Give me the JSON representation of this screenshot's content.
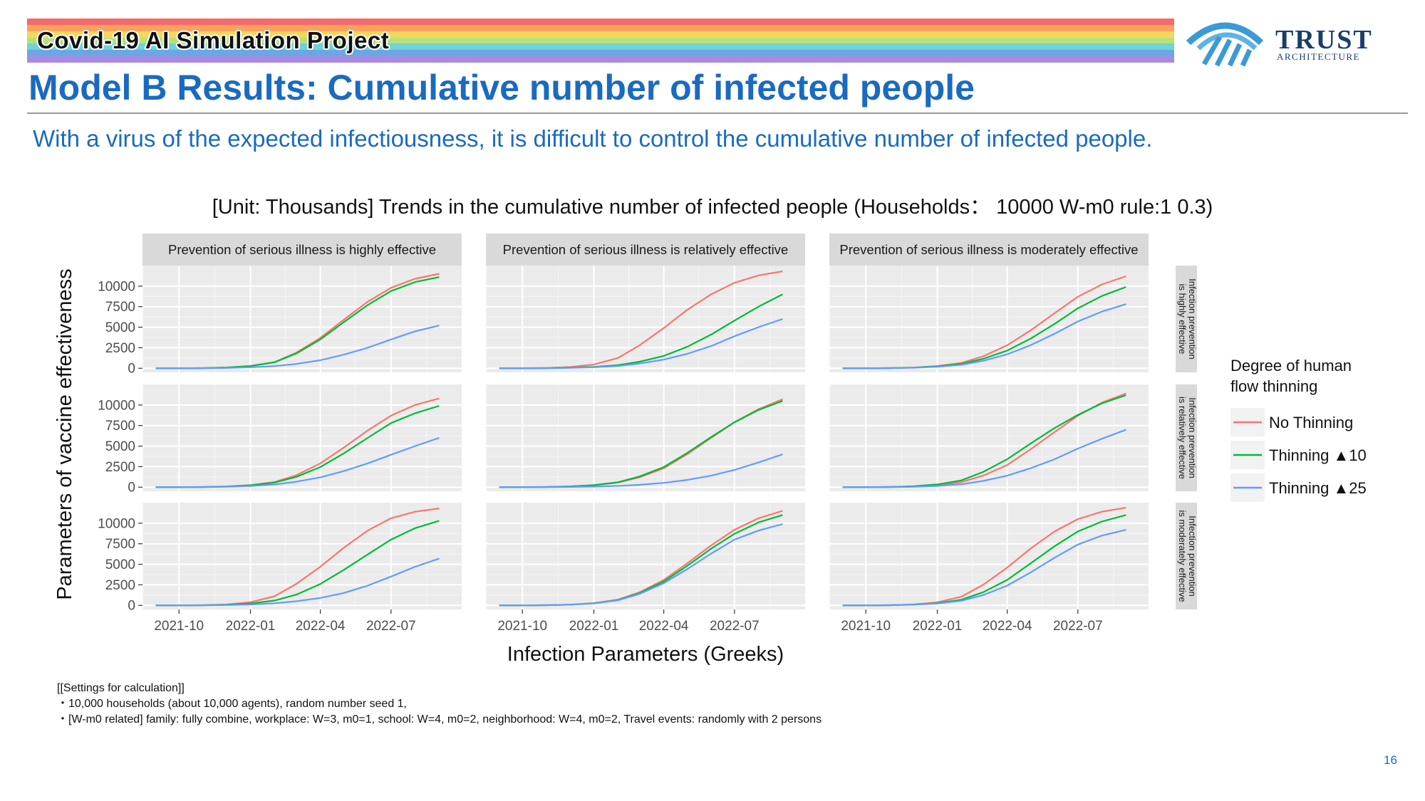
{
  "header": {
    "project_title": "Covid-19 AI Simulation Project",
    "logo_text": "TRUST",
    "logo_subtext": "ARCHITECTURE",
    "logo_icon": "arch-logo-icon",
    "rainbow_colors": [
      "#f46b6b",
      "#f7a35c",
      "#f6d55c",
      "#b8e07a",
      "#6fd3d7",
      "#6aa7e6",
      "#a98ae0"
    ]
  },
  "main_title": "Model B Results: Cumulative number of infected people",
  "subtitle": "With a virus of the expected infectiousness, it is difficult to control the cumulative number of infected people.",
  "settings": {
    "heading": "[[Settings for calculation]]",
    "lines": [
      "・10,000 households (about 10,000 agents), random number seed 1,",
      "・[W-m0 related] family: fully combine, workplace: W=3, m0=1, school: W=4, m0=2, neighborhood: W=4, m0=2, Travel events: randomly with 2 persons"
    ]
  },
  "page_number": "16",
  "chart_data": {
    "type": "line",
    "title": "[Unit: Thousands] Trends in the cumulative number of infected people (Households： 10000 W-m0 rule:1 0.3)",
    "xlabel": "Infection Parameters (Greeks)",
    "ylabel": "Parameters of vaccine effectiveness",
    "x": [
      "2021-09-01",
      "2021-10-01",
      "2021-11-01",
      "2021-12-01",
      "2022-01-01",
      "2022-02-01",
      "2022-03-01",
      "2022-04-01",
      "2022-05-01",
      "2022-06-01",
      "2022-07-01",
      "2022-08-01",
      "2022-09-01"
    ],
    "xlim": [
      "2021-08-15",
      "2022-09-30"
    ],
    "x_ticks": [
      "2021-10",
      "2022-01",
      "2022-04",
      "2022-07"
    ],
    "ylim": [
      -500,
      12500
    ],
    "y_ticks": [
      0,
      2500,
      5000,
      7500,
      10000
    ],
    "grid": true,
    "legend": {
      "title": "Degree of human flow thinning",
      "placement": "right",
      "entries": [
        {
          "name": "No Thinning",
          "color": "#f8766d"
        },
        {
          "name": "Thinning ▲10",
          "color": "#00ba38"
        },
        {
          "name": "Thinning ▲25",
          "color": "#619cff"
        }
      ]
    },
    "column_facets": [
      "Prevention of serious illness is highly effective",
      "Prevention of serious illness is relatively effective",
      "Prevention of serious illness is moderately effective"
    ],
    "row_facets": [
      [
        "Infection prevention",
        "is highly effective"
      ],
      [
        "Infection prevention",
        "is relatively effective"
      ],
      [
        "Infection prevention",
        "is moderately effective"
      ]
    ],
    "panels": [
      [
        {
          "series": [
            {
              "name": "No Thinning",
              "values": [
                0,
                0,
                20,
                90,
                280,
                750,
                1900,
                3700,
                5900,
                8100,
                9800,
                10900,
                11500
              ]
            },
            {
              "name": "Thinning ▲10",
              "values": [
                0,
                0,
                20,
                90,
                270,
                720,
                1800,
                3500,
                5600,
                7700,
                9400,
                10500,
                11100
              ]
            },
            {
              "name": "Thinning ▲25",
              "values": [
                0,
                0,
                10,
                40,
                120,
                260,
                520,
                980,
                1650,
                2500,
                3500,
                4500,
                5200
              ]
            }
          ]
        },
        {
          "series": [
            {
              "name": "No Thinning",
              "values": [
                0,
                10,
                40,
                150,
                450,
                1250,
                2800,
                4900,
                7100,
                9000,
                10400,
                11300,
                11800
              ]
            },
            {
              "name": "Thinning ▲10",
              "values": [
                0,
                0,
                20,
                70,
                170,
                380,
                800,
                1500,
                2600,
                4100,
                5800,
                7500,
                9000
              ]
            },
            {
              "name": "Thinning ▲25",
              "values": [
                0,
                0,
                10,
                50,
                120,
                280,
                580,
                1050,
                1750,
                2700,
                3900,
                5000,
                6000
              ]
            }
          ]
        },
        {
          "series": [
            {
              "name": "No Thinning",
              "values": [
                0,
                0,
                20,
                90,
                270,
                650,
                1450,
                2800,
                4600,
                6700,
                8700,
                10200,
                11200
              ]
            },
            {
              "name": "Thinning ▲10",
              "values": [
                0,
                0,
                20,
                80,
                230,
                540,
                1150,
                2150,
                3600,
                5400,
                7300,
                8800,
                9900
              ]
            },
            {
              "name": "Thinning ▲25",
              "values": [
                0,
                0,
                20,
                60,
                180,
                430,
                900,
                1700,
                2800,
                4200,
                5700,
                6900,
                7800
              ]
            }
          ]
        }
      ],
      [
        {
          "series": [
            {
              "name": "No Thinning",
              "values": [
                0,
                0,
                20,
                90,
                250,
                630,
                1450,
                2900,
                4800,
                6900,
                8700,
                10000,
                10800
              ]
            },
            {
              "name": "Thinning ▲10",
              "values": [
                0,
                0,
                20,
                80,
                230,
                560,
                1250,
                2450,
                4100,
                6000,
                7800,
                9000,
                9900
              ]
            },
            {
              "name": "Thinning ▲25",
              "values": [
                0,
                0,
                10,
                50,
                140,
                320,
                660,
                1200,
                1950,
                2900,
                3950,
                5000,
                6000
              ]
            }
          ]
        },
        {
          "series": [
            {
              "name": "No Thinning",
              "values": [
                0,
                0,
                20,
                90,
                240,
                560,
                1200,
                2300,
                4000,
                6000,
                7900,
                9500,
                10700
              ]
            },
            {
              "name": "Thinning ▲10",
              "values": [
                0,
                0,
                20,
                90,
                250,
                600,
                1300,
                2450,
                4150,
                6100,
                7900,
                9400,
                10500
              ]
            },
            {
              "name": "Thinning ▲25",
              "values": [
                0,
                0,
                10,
                30,
                70,
                150,
                290,
                520,
                880,
                1400,
                2100,
                3000,
                4000
              ]
            }
          ]
        },
        {
          "series": [
            {
              "name": "No Thinning",
              "values": [
                0,
                0,
                20,
                90,
                250,
                620,
                1400,
                2700,
                4600,
                6700,
                8700,
                10300,
                11400
              ]
            },
            {
              "name": "Thinning ▲10",
              "values": [
                0,
                0,
                30,
                110,
                330,
                830,
                1850,
                3400,
                5300,
                7200,
                8800,
                10200,
                11200
              ]
            },
            {
              "name": "Thinning ▲25",
              "values": [
                0,
                0,
                10,
                50,
                150,
                360,
                760,
                1400,
                2300,
                3400,
                4700,
                5900,
                7000
              ]
            }
          ]
        }
      ],
      [
        {
          "series": [
            {
              "name": "No Thinning",
              "values": [
                0,
                0,
                20,
                110,
                380,
                1100,
                2600,
                4700,
                7000,
                9100,
                10600,
                11400,
                11800
              ]
            },
            {
              "name": "Thinning ▲10",
              "values": [
                0,
                0,
                20,
                80,
                230,
                580,
                1300,
                2600,
                4300,
                6200,
                8000,
                9400,
                10300
              ]
            },
            {
              "name": "Thinning ▲25",
              "values": [
                0,
                0,
                10,
                40,
                110,
                250,
                500,
                900,
                1500,
                2400,
                3500,
                4700,
                5700
              ]
            }
          ]
        },
        {
          "series": [
            {
              "name": "No Thinning",
              "values": [
                0,
                0,
                20,
                90,
                270,
                700,
                1600,
                3100,
                5100,
                7300,
                9200,
                10600,
                11500
              ]
            },
            {
              "name": "Thinning ▲10",
              "values": [
                0,
                0,
                20,
                80,
                250,
                650,
                1500,
                2900,
                4800,
                6900,
                8700,
                10100,
                11000
              ]
            },
            {
              "name": "Thinning ▲25",
              "values": [
                0,
                0,
                20,
                80,
                240,
                610,
                1400,
                2700,
                4400,
                6300,
                8000,
                9100,
                9900
              ]
            }
          ]
        },
        {
          "series": [
            {
              "name": "No Thinning",
              "values": [
                0,
                0,
                20,
                110,
                370,
                1050,
                2500,
                4600,
                6900,
                9000,
                10500,
                11400,
                11900
              ]
            },
            {
              "name": "Thinning ▲10",
              "values": [
                0,
                0,
                20,
                90,
                270,
                690,
                1600,
                3100,
                5100,
                7200,
                9000,
                10200,
                11000
              ]
            },
            {
              "name": "Thinning ▲25",
              "values": [
                0,
                0,
                20,
                80,
                230,
                560,
                1250,
                2400,
                4000,
                5800,
                7400,
                8500,
                9200
              ]
            }
          ]
        }
      ]
    ]
  }
}
